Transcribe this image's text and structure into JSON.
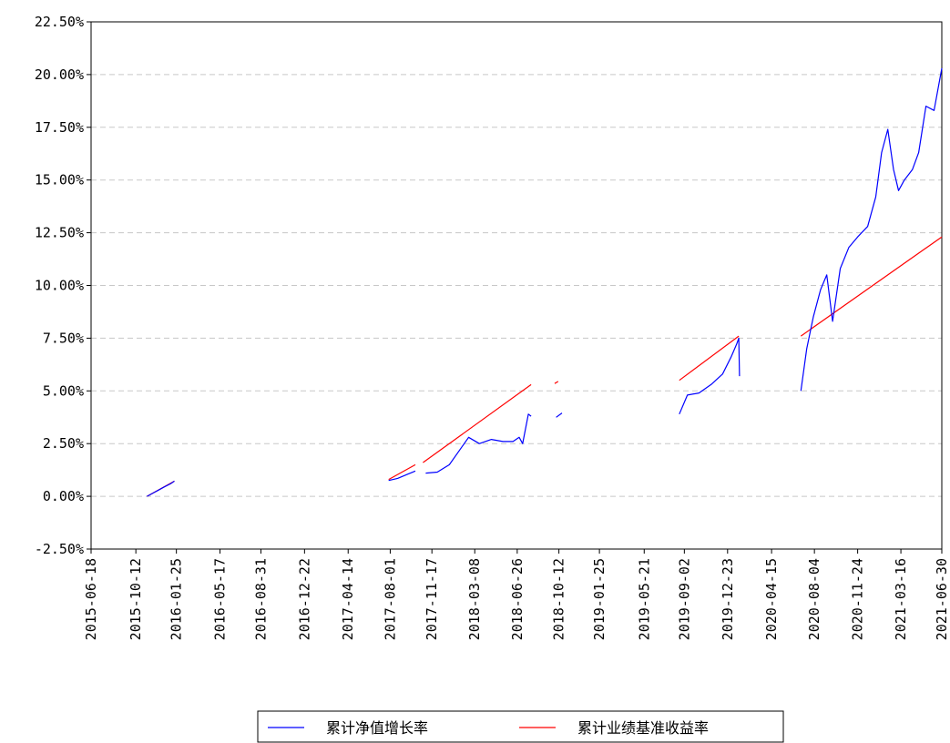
{
  "chart_data": {
    "type": "line",
    "title": "",
    "xlabel": "",
    "ylabel": "",
    "x_range": [
      "2015-06-18",
      "2021-06-30"
    ],
    "ylim": [
      -2.5,
      22.5
    ],
    "y_ticks": [
      -2.5,
      0,
      2.5,
      5,
      7.5,
      10,
      12.5,
      15,
      17.5,
      20,
      22.5
    ],
    "y_tick_labels": [
      "-2.50%",
      "0.00%",
      "2.50%",
      "5.00%",
      "7.50%",
      "10.00%",
      "12.50%",
      "15.00%",
      "17.50%",
      "20.00%",
      "22.50%"
    ],
    "x_ticks": [
      "2015-06-18",
      "2015-10-12",
      "2016-01-25",
      "2016-05-17",
      "2016-08-31",
      "2016-12-22",
      "2017-04-14",
      "2017-08-01",
      "2017-11-17",
      "2018-03-08",
      "2018-06-26",
      "2018-10-12",
      "2019-01-25",
      "2019-05-21",
      "2019-09-02",
      "2019-12-23",
      "2020-04-15",
      "2020-08-04",
      "2020-11-24",
      "2021-03-16",
      "2021-06-30"
    ],
    "grid": "horizontal-dashed",
    "legend_position": "bottom",
    "series": [
      {
        "name": "累计净值增长率",
        "color": "#0000ff",
        "segments": [
          [
            [
              "2015-11-10",
              0.0
            ],
            [
              "2015-11-25",
              0.15
            ],
            [
              "2015-12-10",
              0.3
            ],
            [
              "2015-12-25",
              0.45
            ],
            [
              "2016-01-10",
              0.6
            ],
            [
              "2016-01-20",
              0.72
            ]
          ],
          [
            [
              "2017-07-28",
              0.75
            ],
            [
              "2017-08-20",
              0.85
            ],
            [
              "2017-09-15",
              1.05
            ],
            [
              "2017-10-05",
              1.2
            ]
          ],
          [
            [
              "2017-11-01",
              1.1
            ],
            [
              "2017-12-01",
              1.15
            ],
            [
              "2018-01-01",
              1.5
            ],
            [
              "2018-02-01",
              2.3
            ],
            [
              "2018-02-20",
              2.8
            ],
            [
              "2018-03-20",
              2.5
            ],
            [
              "2018-04-20",
              2.7
            ],
            [
              "2018-05-20",
              2.6
            ],
            [
              "2018-06-15",
              2.6
            ],
            [
              "2018-07-01",
              2.8
            ],
            [
              "2018-07-10",
              2.5
            ],
            [
              "2018-07-25",
              3.9
            ],
            [
              "2018-08-01",
              3.8
            ]
          ],
          [
            [
              "2018-10-05",
              3.75
            ],
            [
              "2018-10-20",
              3.95
            ]
          ],
          [
            [
              "2019-08-20",
              3.9
            ],
            [
              "2019-09-10",
              4.8
            ],
            [
              "2019-10-10",
              4.9
            ],
            [
              "2019-11-10",
              5.3
            ],
            [
              "2019-12-10",
              5.8
            ],
            [
              "2020-01-01",
              6.6
            ],
            [
              "2020-01-15",
              7.2
            ],
            [
              "2020-01-21",
              7.5
            ],
            [
              "2020-01-23",
              5.7
            ]
          ],
          [
            [
              "2020-06-30",
              5.0
            ],
            [
              "2020-07-15",
              7.0
            ],
            [
              "2020-08-01",
              8.5
            ],
            [
              "2020-08-20",
              9.8
            ],
            [
              "2020-09-05",
              10.5
            ],
            [
              "2020-09-20",
              8.3
            ],
            [
              "2020-10-10",
              10.8
            ],
            [
              "2020-11-01",
              11.8
            ],
            [
              "2020-11-24",
              12.3
            ],
            [
              "2020-12-20",
              12.8
            ],
            [
              "2021-01-10",
              14.2
            ],
            [
              "2021-01-25",
              16.3
            ],
            [
              "2021-02-10",
              17.4
            ],
            [
              "2021-02-25",
              15.5
            ],
            [
              "2021-03-10",
              14.5
            ],
            [
              "2021-03-25",
              15.0
            ],
            [
              "2021-04-15",
              15.5
            ],
            [
              "2021-05-01",
              16.3
            ],
            [
              "2021-05-20",
              18.5
            ],
            [
              "2021-06-10",
              18.3
            ],
            [
              "2021-06-30",
              20.3
            ]
          ]
        ]
      },
      {
        "name": "累计业绩基准收益率",
        "color": "#ff0000",
        "segments": [
          [
            [
              "2015-11-10",
              0.0
            ],
            [
              "2016-01-20",
              0.72
            ]
          ],
          [
            [
              "2017-07-28",
              0.8
            ],
            [
              "2017-10-05",
              1.5
            ]
          ],
          [
            [
              "2017-10-25",
              1.6
            ],
            [
              "2018-08-01",
              5.3
            ]
          ],
          [
            [
              "2018-10-01",
              5.35
            ],
            [
              "2018-10-10",
              5.45
            ]
          ],
          [
            [
              "2019-08-20",
              5.5
            ],
            [
              "2020-01-21",
              7.6
            ]
          ],
          [
            [
              "2020-06-30",
              7.6
            ],
            [
              "2021-06-30",
              12.3
            ]
          ]
        ]
      }
    ]
  }
}
